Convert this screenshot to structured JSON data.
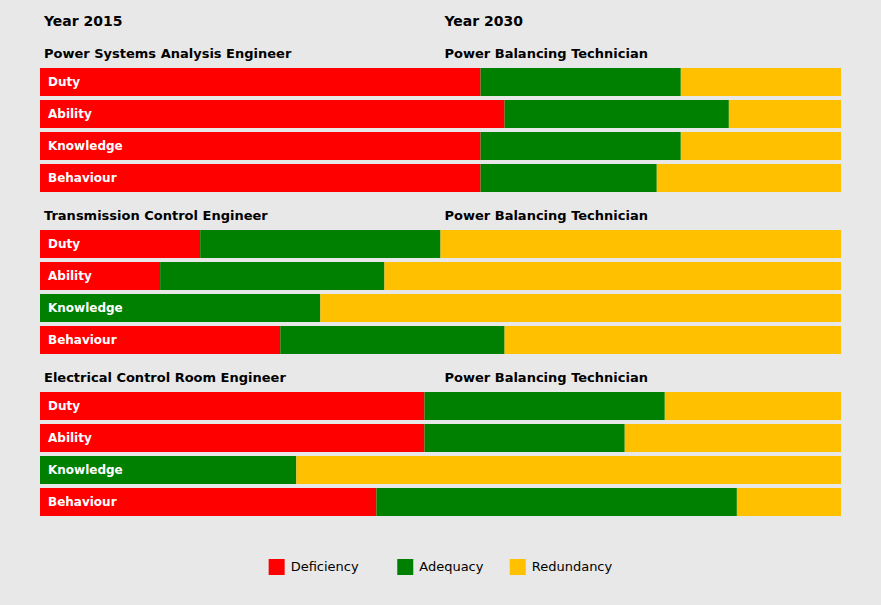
{
  "chart_data": [
    {
      "type": "bar",
      "orientation": "horizontal",
      "stacked": true,
      "grid": false,
      "tick_labels": false,
      "title": "Power Systems Analysis Engineer",
      "subtitle": "Power Balancing Technician",
      "annotations": [
        "Year 2015",
        "Year 2030"
      ],
      "categories": [
        "Duty",
        "Ability",
        "Knowledge",
        "Behaviour"
      ],
      "xlim": [
        0,
        100
      ],
      "series": [
        {
          "name": "Deficiency",
          "color": "#FF0000",
          "values": [
            55,
            58,
            55,
            55
          ]
        },
        {
          "name": "Adequacy",
          "color": "#008000",
          "values": [
            25,
            28,
            25,
            22
          ]
        },
        {
          "name": "Redundancy",
          "color": "#FFC000",
          "values": [
            20,
            14,
            20,
            23
          ]
        }
      ]
    },
    {
      "type": "bar",
      "orientation": "horizontal",
      "stacked": true,
      "grid": false,
      "tick_labels": false,
      "title": "Transmission Control Engineer",
      "subtitle": "Power Balancing Technician",
      "categories": [
        "Duty",
        "Ability",
        "Knowledge",
        "Behaviour"
      ],
      "xlim": [
        0,
        100
      ],
      "series": [
        {
          "name": "Deficiency",
          "color": "#FF0000",
          "values": [
            20,
            15,
            0,
            30
          ]
        },
        {
          "name": "Adequacy",
          "color": "#008000",
          "values": [
            30,
            28,
            35,
            28
          ]
        },
        {
          "name": "Redundancy",
          "color": "#FFC000",
          "values": [
            50,
            57,
            65,
            42
          ]
        }
      ]
    },
    {
      "type": "bar",
      "orientation": "horizontal",
      "stacked": true,
      "grid": false,
      "tick_labels": false,
      "legend": "bottom",
      "title": "Electrical Control Room Engineer",
      "subtitle": "Power Balancing Technician",
      "categories": [
        "Duty",
        "Ability",
        "Knowledge",
        "Behaviour"
      ],
      "xlim": [
        0,
        100
      ],
      "series": [
        {
          "name": "Deficiency",
          "color": "#FF0000",
          "values": [
            48,
            48,
            0,
            42
          ]
        },
        {
          "name": "Adequacy",
          "color": "#008000",
          "values": [
            30,
            25,
            32,
            45
          ]
        },
        {
          "name": "Redundancy",
          "color": "#FFC000",
          "values": [
            22,
            27,
            68,
            13
          ]
        }
      ]
    }
  ]
}
